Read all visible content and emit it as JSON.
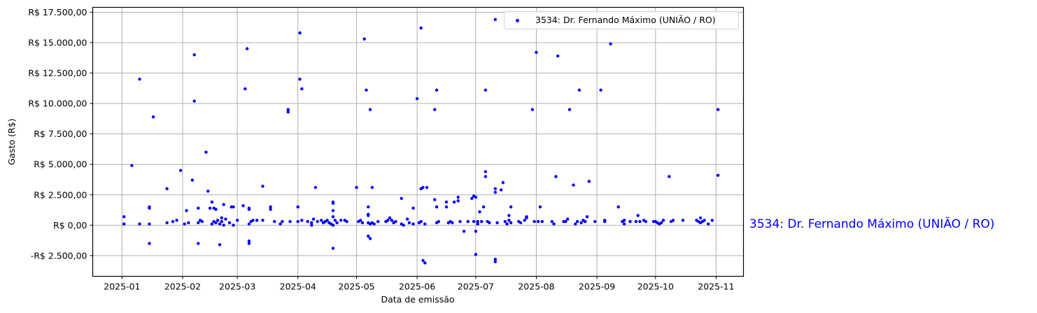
{
  "chart_data": {
    "type": "scatter",
    "title": "",
    "xlabel": "Data de emissão",
    "ylabel": "Gasto (R$)",
    "x_ticks": [
      "2025-01",
      "2025-02",
      "2025-03",
      "2025-04",
      "2025-05",
      "2025-06",
      "2025-07",
      "2025-08",
      "2025-09",
      "2025-10",
      "2025-11"
    ],
    "y_ticks": [
      {
        "value": -2500,
        "label": "-R$ 2.500,00"
      },
      {
        "value": 0,
        "label": "R$ 0,00"
      },
      {
        "value": 2500,
        "label": "R$ 2.500,00"
      },
      {
        "value": 5000,
        "label": "R$ 5.000,00"
      },
      {
        "value": 7500,
        "label": "R$ 7.500,00"
      },
      {
        "value": 10000,
        "label": "R$ 10.000,00"
      },
      {
        "value": 12500,
        "label": "R$ 12.500,00"
      },
      {
        "value": 15000,
        "label": "R$ 15.000,00"
      },
      {
        "value": 17500,
        "label": "R$ 17.500,00"
      }
    ],
    "ylim": [
      -4200,
      17900
    ],
    "xlim": [
      "2024-12-17",
      "2025-11-15"
    ],
    "grid": true,
    "legend_position": "upper right",
    "marker_color": "#0000ff",
    "series": [
      {
        "name": "3534: Dr. Fernando Máximo (UNIÃO / RO)",
        "points": [
          [
            "2025-01-02",
            700
          ],
          [
            "2025-01-02",
            100
          ],
          [
            "2025-01-06",
            4900
          ],
          [
            "2025-01-10",
            12000
          ],
          [
            "2025-01-10",
            100
          ],
          [
            "2025-01-15",
            1500
          ],
          [
            "2025-01-15",
            1400
          ],
          [
            "2025-01-15",
            100
          ],
          [
            "2025-01-15",
            -1500
          ],
          [
            "2025-01-17",
            8900
          ],
          [
            "2025-01-24",
            3000
          ],
          [
            "2025-01-24",
            200
          ],
          [
            "2025-01-27",
            300
          ],
          [
            "2025-01-29",
            400
          ],
          [
            "2025-01-31",
            4500
          ],
          [
            "2025-02-02",
            100
          ],
          [
            "2025-02-03",
            1200
          ],
          [
            "2025-02-04",
            200
          ],
          [
            "2025-02-06",
            3700
          ],
          [
            "2025-02-07",
            14000
          ],
          [
            "2025-02-07",
            10200
          ],
          [
            "2025-02-09",
            1400
          ],
          [
            "2025-02-09",
            -1500
          ],
          [
            "2025-02-09",
            200
          ],
          [
            "2025-02-10",
            400
          ],
          [
            "2025-02-11",
            300
          ],
          [
            "2025-02-13",
            6000
          ],
          [
            "2025-02-14",
            2800
          ],
          [
            "2025-02-15",
            1400
          ],
          [
            "2025-02-16",
            1900
          ],
          [
            "2025-02-16",
            100
          ],
          [
            "2025-02-17",
            300
          ],
          [
            "2025-02-17",
            1400
          ],
          [
            "2025-02-18",
            1300
          ],
          [
            "2025-02-18",
            200
          ],
          [
            "2025-02-19",
            400
          ],
          [
            "2025-02-20",
            -1600
          ],
          [
            "2025-02-20",
            100
          ],
          [
            "2025-02-21",
            600
          ],
          [
            "2025-02-21",
            300
          ],
          [
            "2025-02-22",
            1700
          ],
          [
            "2025-02-22",
            0
          ],
          [
            "2025-02-23",
            500
          ],
          [
            "2025-02-25",
            200
          ],
          [
            "2025-02-26",
            1500
          ],
          [
            "2025-02-27",
            1500
          ],
          [
            "2025-02-27",
            0
          ],
          [
            "2025-03-01",
            400
          ],
          [
            "2025-03-04",
            1600
          ],
          [
            "2025-03-05",
            11200
          ],
          [
            "2025-03-06",
            14500
          ],
          [
            "2025-03-07",
            -1300
          ],
          [
            "2025-03-07",
            -1500
          ],
          [
            "2025-03-07",
            1400
          ],
          [
            "2025-03-07",
            1300
          ],
          [
            "2025-03-07",
            100
          ],
          [
            "2025-03-08",
            300
          ],
          [
            "2025-03-09",
            400
          ],
          [
            "2025-03-11",
            400
          ],
          [
            "2025-03-14",
            3200
          ],
          [
            "2025-03-14",
            400
          ],
          [
            "2025-03-18",
            1500
          ],
          [
            "2025-03-18",
            1300
          ],
          [
            "2025-03-20",
            300
          ],
          [
            "2025-03-23",
            100
          ],
          [
            "2025-03-24",
            300
          ],
          [
            "2025-03-27",
            9500
          ],
          [
            "2025-03-27",
            9300
          ],
          [
            "2025-03-28",
            300
          ],
          [
            "2025-04-01",
            1500
          ],
          [
            "2025-04-01",
            300
          ],
          [
            "2025-04-02",
            15800
          ],
          [
            "2025-04-02",
            12000
          ],
          [
            "2025-04-03",
            11200
          ],
          [
            "2025-04-03",
            400
          ],
          [
            "2025-04-06",
            300
          ],
          [
            "2025-04-08",
            200
          ],
          [
            "2025-04-08",
            0
          ],
          [
            "2025-04-09",
            500
          ],
          [
            "2025-04-10",
            3100
          ],
          [
            "2025-04-11",
            300
          ],
          [
            "2025-04-13",
            400
          ],
          [
            "2025-04-14",
            200
          ],
          [
            "2025-04-15",
            300
          ],
          [
            "2025-04-16",
            400
          ],
          [
            "2025-04-17",
            200
          ],
          [
            "2025-04-18",
            100
          ],
          [
            "2025-04-19",
            1900
          ],
          [
            "2025-04-19",
            1800
          ],
          [
            "2025-04-19",
            1200
          ],
          [
            "2025-04-19",
            700
          ],
          [
            "2025-04-19",
            -1900
          ],
          [
            "2025-04-19",
            0
          ],
          [
            "2025-04-20",
            400
          ],
          [
            "2025-04-21",
            200
          ],
          [
            "2025-04-23",
            400
          ],
          [
            "2025-04-25",
            400
          ],
          [
            "2025-04-26",
            300
          ],
          [
            "2025-05-01",
            3100
          ],
          [
            "2025-05-02",
            300
          ],
          [
            "2025-05-03",
            400
          ],
          [
            "2025-05-04",
            200
          ],
          [
            "2025-05-05",
            15300
          ],
          [
            "2025-05-06",
            11100
          ],
          [
            "2025-05-07",
            200
          ],
          [
            "2025-05-07",
            1500
          ],
          [
            "2025-05-07",
            900
          ],
          [
            "2025-05-07",
            800
          ],
          [
            "2025-05-07",
            -900
          ],
          [
            "2025-05-08",
            -1100
          ],
          [
            "2025-05-08",
            9500
          ],
          [
            "2025-05-08",
            100
          ],
          [
            "2025-05-09",
            3100
          ],
          [
            "2025-05-09",
            200
          ],
          [
            "2025-05-10",
            100
          ],
          [
            "2025-05-12",
            300
          ],
          [
            "2025-05-16",
            300
          ],
          [
            "2025-05-17",
            400
          ],
          [
            "2025-05-18",
            600
          ],
          [
            "2025-05-19",
            400
          ],
          [
            "2025-05-20",
            200
          ],
          [
            "2025-05-21",
            300
          ],
          [
            "2025-05-24",
            2200
          ],
          [
            "2025-05-24",
            100
          ],
          [
            "2025-05-25",
            0
          ],
          [
            "2025-05-27",
            500
          ],
          [
            "2025-05-28",
            200
          ],
          [
            "2025-05-30",
            1400
          ],
          [
            "2025-05-30",
            100
          ],
          [
            "2025-06-01",
            10400
          ],
          [
            "2025-06-02",
            200
          ],
          [
            "2025-06-03",
            16200
          ],
          [
            "2025-06-03",
            3000
          ],
          [
            "2025-06-03",
            300
          ],
          [
            "2025-06-04",
            3100
          ],
          [
            "2025-06-04",
            -2900
          ],
          [
            "2025-06-05",
            -3100
          ],
          [
            "2025-06-05",
            100
          ],
          [
            "2025-06-06",
            3100
          ],
          [
            "2025-06-10",
            9500
          ],
          [
            "2025-06-10",
            2100
          ],
          [
            "2025-06-11",
            11100
          ],
          [
            "2025-06-11",
            1500
          ],
          [
            "2025-06-11",
            200
          ],
          [
            "2025-06-12",
            300
          ],
          [
            "2025-06-16",
            1500
          ],
          [
            "2025-06-16",
            1900
          ],
          [
            "2025-06-17",
            200
          ],
          [
            "2025-06-18",
            300
          ],
          [
            "2025-06-19",
            200
          ],
          [
            "2025-06-20",
            1900
          ],
          [
            "2025-06-22",
            2300
          ],
          [
            "2025-06-22",
            2000
          ],
          [
            "2025-06-23",
            300
          ],
          [
            "2025-06-25",
            -500
          ],
          [
            "2025-06-27",
            300
          ],
          [
            "2025-06-29",
            2200
          ],
          [
            "2025-06-30",
            2400
          ],
          [
            "2025-06-30",
            300
          ],
          [
            "2025-07-01",
            2300
          ],
          [
            "2025-07-01",
            -2400
          ],
          [
            "2025-07-01",
            -500
          ],
          [
            "2025-07-02",
            100
          ],
          [
            "2025-07-02",
            300
          ],
          [
            "2025-07-03",
            1100
          ],
          [
            "2025-07-04",
            300
          ],
          [
            "2025-07-05",
            1500
          ],
          [
            "2025-07-06",
            4400
          ],
          [
            "2025-07-06",
            4000
          ],
          [
            "2025-07-06",
            11100
          ],
          [
            "2025-07-07",
            300
          ],
          [
            "2025-07-08",
            200
          ],
          [
            "2025-07-11",
            16900
          ],
          [
            "2025-07-11",
            3000
          ],
          [
            "2025-07-11",
            2700
          ],
          [
            "2025-07-11",
            -2800
          ],
          [
            "2025-07-11",
            -3000
          ],
          [
            "2025-07-12",
            200
          ],
          [
            "2025-07-14",
            2900
          ],
          [
            "2025-07-15",
            3500
          ],
          [
            "2025-07-16",
            300
          ],
          [
            "2025-07-17",
            100
          ],
          [
            "2025-07-18",
            400
          ],
          [
            "2025-07-18",
            800
          ],
          [
            "2025-07-19",
            1500
          ],
          [
            "2025-07-19",
            200
          ],
          [
            "2025-07-23",
            300
          ],
          [
            "2025-07-24",
            200
          ],
          [
            "2025-07-26",
            400
          ],
          [
            "2025-07-27",
            700
          ],
          [
            "2025-07-27",
            600
          ],
          [
            "2025-07-30",
            9500
          ],
          [
            "2025-07-31",
            300
          ],
          [
            "2025-08-01",
            14200
          ],
          [
            "2025-08-02",
            300
          ],
          [
            "2025-08-03",
            1500
          ],
          [
            "2025-08-04",
            300
          ],
          [
            "2025-08-09",
            300
          ],
          [
            "2025-08-10",
            100
          ],
          [
            "2025-08-11",
            4000
          ],
          [
            "2025-08-12",
            13900
          ],
          [
            "2025-08-15",
            300
          ],
          [
            "2025-08-16",
            300
          ],
          [
            "2025-08-17",
            500
          ],
          [
            "2025-08-18",
            9500
          ],
          [
            "2025-08-20",
            3300
          ],
          [
            "2025-08-21",
            100
          ],
          [
            "2025-08-22",
            300
          ],
          [
            "2025-08-23",
            11100
          ],
          [
            "2025-08-24",
            200
          ],
          [
            "2025-08-25",
            400
          ],
          [
            "2025-08-26",
            300
          ],
          [
            "2025-08-27",
            700
          ],
          [
            "2025-08-28",
            3600
          ],
          [
            "2025-08-31",
            300
          ],
          [
            "2025-09-03",
            11100
          ],
          [
            "2025-09-05",
            300
          ],
          [
            "2025-09-05",
            400
          ],
          [
            "2025-09-08",
            14900
          ],
          [
            "2025-09-12",
            1500
          ],
          [
            "2025-09-14",
            300
          ],
          [
            "2025-09-15",
            400
          ],
          [
            "2025-09-15",
            100
          ],
          [
            "2025-09-18",
            300
          ],
          [
            "2025-09-21",
            300
          ],
          [
            "2025-09-22",
            800
          ],
          [
            "2025-09-23",
            300
          ],
          [
            "2025-09-25",
            400
          ],
          [
            "2025-09-26",
            300
          ],
          [
            "2025-09-30",
            300
          ],
          [
            "2025-10-01",
            300
          ],
          [
            "2025-10-02",
            200
          ],
          [
            "2025-10-03",
            100
          ],
          [
            "2025-10-04",
            200
          ],
          [
            "2025-10-05",
            400
          ],
          [
            "2025-10-08",
            4000
          ],
          [
            "2025-10-09",
            300
          ],
          [
            "2025-10-10",
            400
          ],
          [
            "2025-10-15",
            400
          ],
          [
            "2025-10-22",
            400
          ],
          [
            "2025-10-23",
            300
          ],
          [
            "2025-10-24",
            600
          ],
          [
            "2025-10-24",
            200
          ],
          [
            "2025-10-25",
            300
          ],
          [
            "2025-10-26",
            400
          ],
          [
            "2025-10-28",
            100
          ],
          [
            "2025-10-30",
            400
          ],
          [
            "2025-11-02",
            9500
          ],
          [
            "2025-11-02",
            4100
          ]
        ]
      }
    ]
  },
  "legend": {
    "label": "3534: Dr. Fernando Máximo (UNIÃO / RO)"
  },
  "side_label": "3534: Dr. Fernando Máximo (UNIÃO / RO)"
}
